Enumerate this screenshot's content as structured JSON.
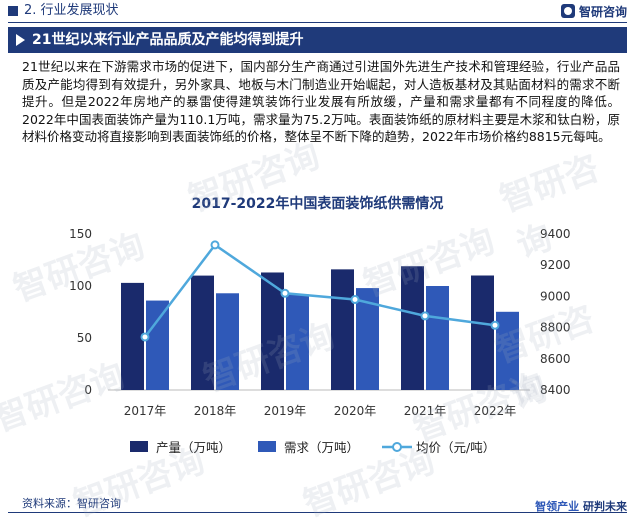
{
  "header": {
    "section": "2. 行业发展现状",
    "brand": "智研咨询"
  },
  "banner": {
    "title": "21世纪以来行业产品品质及产能均得到提升"
  },
  "paragraph": "21世纪以来在下游需求市场的促进下，国内部分生产商通过引进国外先进生产技术和管理经验，行业产品品质及产能均得到有效提升，另外家具、地板与木门制造业开始崛起，对人造板基材及其贴面材料的需求不断提升。但是2022年房地产的暴雷使得建筑装饰行业发展有所放缓，产量和需求量都有不同程度的降低。2022年中国表面装饰产量为110.1万吨，需求量为75.2万吨。表面装饰纸的原材料主要是木浆和钛白粉，原材料价格变动将直接影响到表面装饰纸的价格，整体呈不断下降的趋势，2022年市场价格约8815元每吨。",
  "chart_data": {
    "type": "bar",
    "title": "2017-2022年中国表面装饰纸供需情况",
    "categories": [
      "2017年",
      "2018年",
      "2019年",
      "2020年",
      "2021年",
      "2022年"
    ],
    "series": [
      {
        "name": "产量（万吨）",
        "type": "bar",
        "axis": "left",
        "color": "#1a2a6c",
        "values": [
          103,
          110,
          113,
          116,
          119,
          110.1
        ]
      },
      {
        "name": "需求（万吨）",
        "type": "bar",
        "axis": "left",
        "color": "#2f59b8",
        "values": [
          86,
          93,
          92,
          98,
          100,
          75.2
        ]
      },
      {
        "name": "均价（元/吨）",
        "type": "line",
        "axis": "right",
        "color": "#4fa8dc",
        "values": [
          8740,
          9330,
          9020,
          8980,
          8875,
          8815
        ]
      }
    ],
    "left_axis": {
      "ticks": [
        0,
        50,
        100,
        150
      ],
      "ylim": [
        0,
        150
      ]
    },
    "right_axis": {
      "ticks": [
        8400,
        8600,
        8800,
        9000,
        9200,
        9400
      ],
      "ylim": [
        8400,
        9400
      ]
    },
    "grid": false,
    "legend": "bottom"
  },
  "footer": {
    "source": "资料来源：智研咨询",
    "slogan_a": "智领产业",
    "slogan_b": "研判未来"
  },
  "watermark": "智研咨询"
}
